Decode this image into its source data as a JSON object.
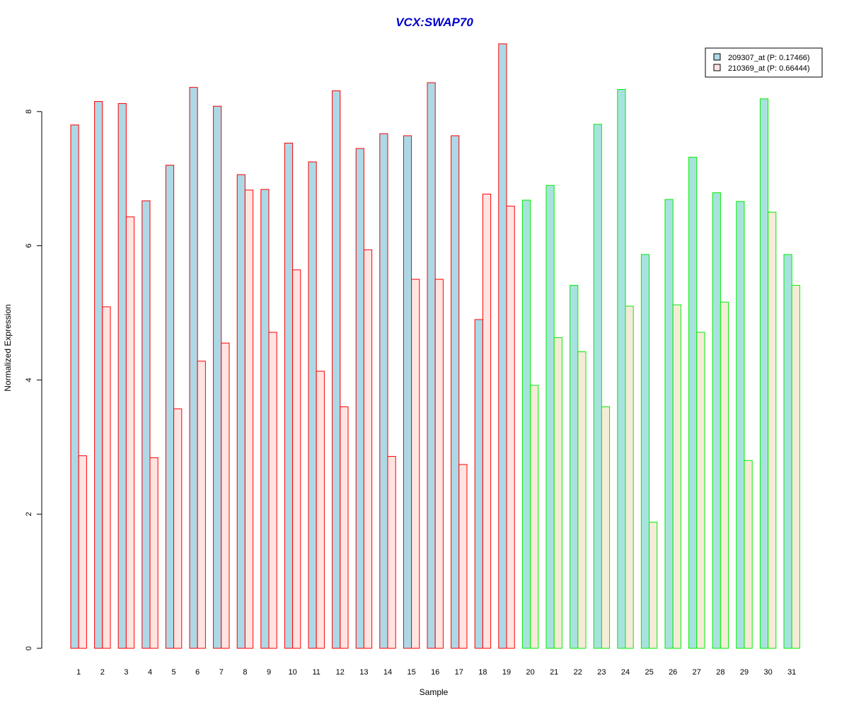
{
  "chart_data": {
    "type": "bar",
    "title": "VCX:SWAP70",
    "xlabel": "Sample",
    "ylabel": "Normalized Expression",
    "ylim": [
      0,
      9.05
    ],
    "yticks": [
      0,
      2,
      4,
      6,
      8
    ],
    "grid": false,
    "legend_placement": "top-right",
    "categories": [
      "1",
      "2",
      "3",
      "4",
      "5",
      "6",
      "7",
      "8",
      "9",
      "10",
      "11",
      "12",
      "13",
      "14",
      "15",
      "16",
      "17",
      "18",
      "19",
      "20",
      "21",
      "22",
      "23",
      "24",
      "25",
      "26",
      "27",
      "28",
      "29",
      "30",
      "31"
    ],
    "groups": [
      {
        "from": 1,
        "to": 19,
        "border": "#ff0000",
        "fills": [
          "#add8e6",
          "#ffe4e1"
        ]
      },
      {
        "from": 20,
        "to": 31,
        "border": "#00ee00",
        "fills": [
          "#a8e2de",
          "#f5ecd8"
        ]
      }
    ],
    "series": [
      {
        "name": "209307_at (P: 0.17466)",
        "legend_color": "#add8e6",
        "values": [
          7.8,
          8.15,
          8.12,
          6.67,
          7.2,
          8.36,
          8.08,
          7.06,
          6.84,
          7.53,
          7.25,
          8.31,
          7.45,
          7.67,
          7.64,
          8.43,
          7.64,
          4.9,
          9.01,
          6.68,
          6.9,
          5.41,
          7.81,
          8.33,
          5.87,
          6.69,
          7.32,
          6.79,
          6.66,
          8.19,
          5.87
        ]
      },
      {
        "name": "210369_at (P: 0.66444)",
        "legend_color": "#ffe4e1",
        "values": [
          2.87,
          5.09,
          6.43,
          2.84,
          3.57,
          4.28,
          4.55,
          6.83,
          4.71,
          5.64,
          4.13,
          3.6,
          5.94,
          2.86,
          5.5,
          5.5,
          2.74,
          6.77,
          6.59,
          3.92,
          4.63,
          4.42,
          3.6,
          5.1,
          1.88,
          5.12,
          4.71,
          5.16,
          2.8,
          6.5,
          5.41
        ]
      }
    ]
  }
}
